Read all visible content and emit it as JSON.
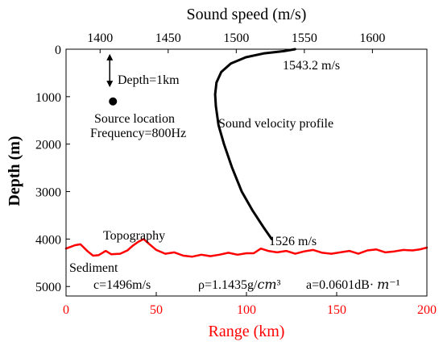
{
  "chart_data": {
    "type": "line",
    "top_axis": {
      "label": "Sound speed (m/s)",
      "range": [
        1375,
        1640
      ],
      "ticks": [
        1400,
        1450,
        1500,
        1550,
        1600
      ],
      "color": "#000000"
    },
    "bottom_axis": {
      "label": "Range (km)",
      "range": [
        0,
        200
      ],
      "ticks": [
        0,
        50,
        100,
        150,
        200
      ],
      "color": "#ff0000"
    },
    "left_axis": {
      "label": "Depth (m)",
      "range": [
        0,
        5200
      ],
      "ticks": [
        0,
        1000,
        2000,
        3000,
        4000,
        5000
      ],
      "inverted": true
    },
    "series": [
      {
        "name": "Sound velocity profile",
        "axis": "top",
        "color": "#000000",
        "points": [
          [
            1543.2,
            0
          ],
          [
            1535,
            40
          ],
          [
            1520,
            90
          ],
          [
            1507,
            170
          ],
          [
            1496,
            300
          ],
          [
            1489,
            480
          ],
          [
            1485.5,
            700
          ],
          [
            1484.5,
            950
          ],
          [
            1485,
            1200
          ],
          [
            1487,
            1600
          ],
          [
            1491,
            2000
          ],
          [
            1497,
            2500
          ],
          [
            1504,
            3000
          ],
          [
            1512,
            3400
          ],
          [
            1520,
            3750
          ],
          [
            1526,
            4000
          ]
        ]
      },
      {
        "name": "Topography",
        "axis": "bottom",
        "color": "#ff0000",
        "points": [
          [
            0,
            4200
          ],
          [
            5,
            4130
          ],
          [
            8,
            4110
          ],
          [
            12,
            4260
          ],
          [
            15,
            4350
          ],
          [
            18,
            4340
          ],
          [
            22,
            4250
          ],
          [
            25,
            4320
          ],
          [
            30,
            4310
          ],
          [
            34,
            4240
          ],
          [
            37,
            4140
          ],
          [
            40,
            4060
          ],
          [
            43,
            4000
          ],
          [
            46,
            4100
          ],
          [
            50,
            4230
          ],
          [
            55,
            4310
          ],
          [
            60,
            4280
          ],
          [
            65,
            4350
          ],
          [
            70,
            4370
          ],
          [
            75,
            4330
          ],
          [
            80,
            4360
          ],
          [
            85,
            4330
          ],
          [
            90,
            4290
          ],
          [
            95,
            4330
          ],
          [
            100,
            4300
          ],
          [
            104,
            4300
          ],
          [
            108,
            4200
          ],
          [
            112,
            4250
          ],
          [
            117,
            4280
          ],
          [
            122,
            4250
          ],
          [
            127,
            4310
          ],
          [
            132,
            4260
          ],
          [
            137,
            4230
          ],
          [
            142,
            4290
          ],
          [
            147,
            4310
          ],
          [
            152,
            4280
          ],
          [
            157,
            4250
          ],
          [
            162,
            4310
          ],
          [
            167,
            4240
          ],
          [
            172,
            4220
          ],
          [
            177,
            4280
          ],
          [
            182,
            4260
          ],
          [
            187,
            4230
          ],
          [
            192,
            4240
          ],
          [
            196,
            4220
          ],
          [
            200,
            4180
          ]
        ]
      }
    ],
    "source": {
      "range": 26,
      "depth": 1100,
      "arrow_depths": [
        100,
        800
      ]
    },
    "annotations": {
      "depth_label": "Depth=1km",
      "source_label": "Source location",
      "frequency_label": "Frequency=800Hz",
      "svp_label": "Sound velocity profile",
      "surface_speed": "1543.2 m/s",
      "bottom_speed": "1526 m/s",
      "topography_label": "Topography",
      "sediment_label": "Sediment",
      "sediment_c": "c=1496m/s",
      "sediment_rho": "ρ=1.1435g/𝑐𝑚³",
      "sediment_a": "a=0.0601dB· 𝑚⁻¹"
    }
  }
}
